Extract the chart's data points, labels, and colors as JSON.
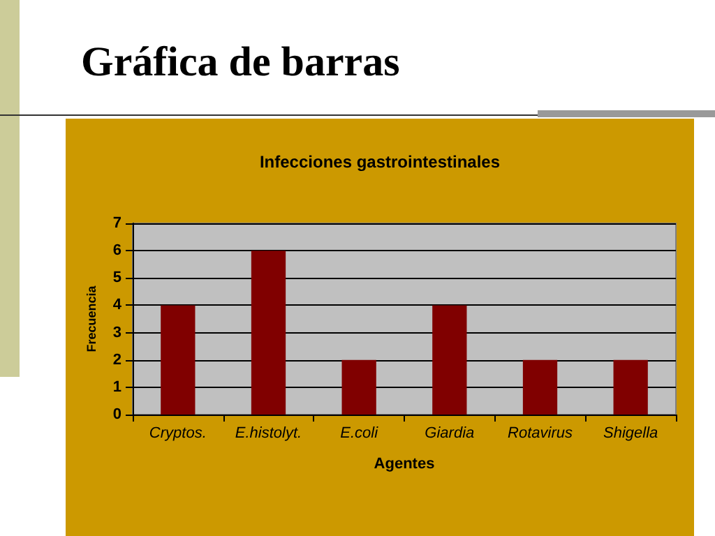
{
  "chart_data": {
    "type": "bar",
    "title": "Gráfica de barras",
    "subtitle": "Infecciones gastrointestinales",
    "xlabel": "Agentes",
    "ylabel": "Frecuencia",
    "categories": [
      "Cryptos.",
      "E.histolyt.",
      "E.coli",
      "Giardia",
      "Rotavirus",
      "Shigella"
    ],
    "values": [
      4,
      6,
      2,
      4,
      2,
      2
    ],
    "color": "#800000",
    "ylim": [
      0,
      7
    ],
    "yticks": [
      0,
      1,
      2,
      3,
      4,
      5,
      6,
      7
    ],
    "grid": "y"
  }
}
